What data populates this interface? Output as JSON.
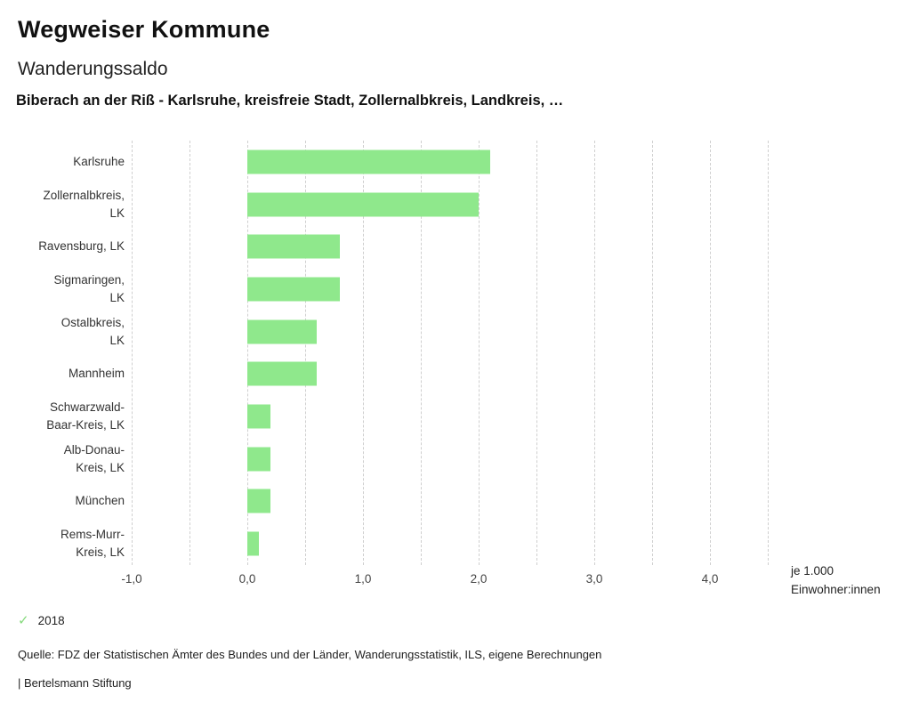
{
  "header": {
    "title": "Wegweiser Kommune",
    "subtitle": "Wanderungssaldo",
    "selection": "Biberach an der Riß - Karlsruhe, kreisfreie Stadt, Zollernalbkreis, Landkreis, …"
  },
  "legend": {
    "check_icon": "✓",
    "year": "2018",
    "check_color": "#85da7c"
  },
  "footer": {
    "source": "Quelle: FDZ der Statistischen Ämter des Bundes und der Länder, Wanderungsstatistik, ILS, eigene Berechnungen",
    "branding": "| Bertelsmann Stiftung"
  },
  "chart_data": {
    "type": "bar",
    "orientation": "horizontal",
    "title": "Wanderungssaldo",
    "series_name": "2018",
    "categories": [
      "Karlsruhe",
      "Zollernalbkreis, LK",
      "Ravensburg, LK",
      "Sigmaringen, LK",
      "Ostalbkreis, LK",
      "Mannheim",
      "Schwarzwald-Baar-Kreis, LK",
      "Alb-Donau-Kreis, LK",
      "München",
      "Rems-Murr-Kreis, LK"
    ],
    "category_lines": [
      [
        "Karlsruhe"
      ],
      [
        "Zollernalbkreis,",
        "LK"
      ],
      [
        "Ravensburg, LK"
      ],
      [
        "Sigmaringen,",
        "LK"
      ],
      [
        "Ostalbkreis,",
        "LK"
      ],
      [
        "Mannheim"
      ],
      [
        "Schwarzwald-",
        "Baar-Kreis, LK"
      ],
      [
        "Alb-Donau-",
        "Kreis, LK"
      ],
      [
        "München"
      ],
      [
        "Rems-Murr-",
        "Kreis, LK"
      ]
    ],
    "values": [
      2.1,
      2.0,
      0.8,
      0.8,
      0.6,
      0.6,
      0.2,
      0.2,
      0.2,
      0.1
    ],
    "unit_label_lines": [
      "je 1.000",
      "Einwohner:innen"
    ],
    "xlim": [
      -1.0,
      4.5
    ],
    "grid_step": 0.5,
    "grid": true,
    "x_ticks": [
      -1.0,
      0.0,
      1.0,
      2.0,
      3.0,
      4.0
    ],
    "x_tick_labels": [
      "-1,0",
      "0,0",
      "1,0",
      "2,0",
      "3,0",
      "4,0"
    ],
    "bar_color": "#8fe88c"
  }
}
